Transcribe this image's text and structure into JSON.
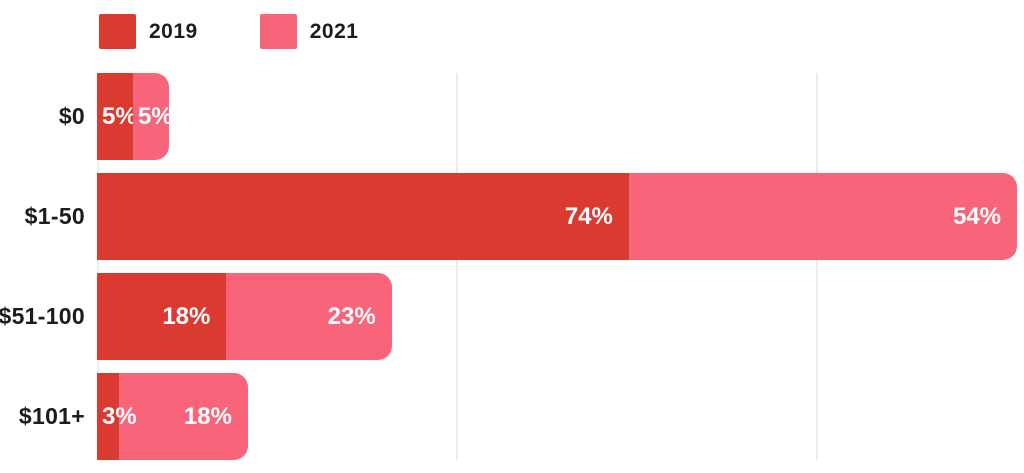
{
  "chart_data": {
    "type": "bar",
    "orientation": "horizontal",
    "stacked": true,
    "categories": [
      "$0",
      "$1-50",
      "$51-100",
      "$101+"
    ],
    "series": [
      {
        "name": "2019",
        "color": "#db3a31",
        "values": [
          5,
          74,
          18,
          3
        ]
      },
      {
        "name": "2021",
        "color": "#f8657b",
        "values": [
          5,
          54,
          23,
          18
        ]
      }
    ],
    "value_suffix": "%",
    "axis_max_units": 128,
    "gridlines_at": [
      0,
      50,
      100
    ],
    "grid": true,
    "legend_position": "top-left",
    "title": "",
    "xlabel": "",
    "ylabel": ""
  },
  "colors": {
    "background": "#ffffff",
    "gridline": "#ececec",
    "category_text": "#1c1c1c",
    "value_text": "#ffffff",
    "series_2019": "#db3a31",
    "series_2021": "#f8657b"
  }
}
